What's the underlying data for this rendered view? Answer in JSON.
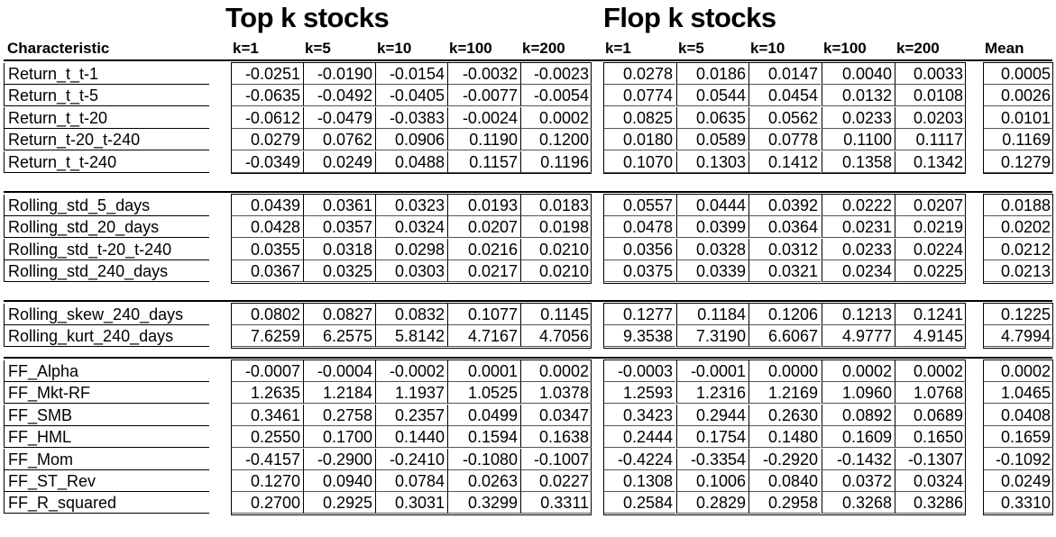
{
  "titles": {
    "top": "Top k stocks",
    "flop": "Flop k stocks"
  },
  "header": {
    "characteristic": "Characteristic",
    "top_cols": [
      "k=1",
      "k=5",
      "k=10",
      "k=100",
      "k=200"
    ],
    "flop_cols": [
      "k=1",
      "k=5",
      "k=10",
      "k=100",
      "k=200"
    ],
    "mean": "Mean"
  },
  "groups": [
    {
      "rows": [
        {
          "label": "Return_t_t-1",
          "top": [
            "-0.0251",
            "-0.0190",
            "-0.0154",
            "-0.0032",
            "-0.0023"
          ],
          "flop": [
            "0.0278",
            "0.0186",
            "0.0147",
            "0.0040",
            "0.0033"
          ],
          "mean": "0.0005"
        },
        {
          "label": "Return_t_t-5",
          "top": [
            "-0.0635",
            "-0.0492",
            "-0.0405",
            "-0.0077",
            "-0.0054"
          ],
          "flop": [
            "0.0774",
            "0.0544",
            "0.0454",
            "0.0132",
            "0.0108"
          ],
          "mean": "0.0026"
        },
        {
          "label": "Return_t_t-20",
          "top": [
            "-0.0612",
            "-0.0479",
            "-0.0383",
            "-0.0024",
            "0.0002"
          ],
          "flop": [
            "0.0825",
            "0.0635",
            "0.0562",
            "0.0233",
            "0.0203"
          ],
          "mean": "0.0101"
        },
        {
          "label": "Return_t-20_t-240",
          "top": [
            "0.0279",
            "0.0762",
            "0.0906",
            "0.1190",
            "0.1200"
          ],
          "flop": [
            "0.0180",
            "0.0589",
            "0.0778",
            "0.1100",
            "0.1117"
          ],
          "mean": "0.1169"
        },
        {
          "label": "Return_t_t-240",
          "top": [
            "-0.0349",
            "0.0249",
            "0.0488",
            "0.1157",
            "0.1196"
          ],
          "flop": [
            "0.1070",
            "0.1303",
            "0.1412",
            "0.1358",
            "0.1342"
          ],
          "mean": "0.1279"
        }
      ]
    },
    {
      "rows": [
        {
          "label": "Rolling_std_5_days",
          "top": [
            "0.0439",
            "0.0361",
            "0.0323",
            "0.0193",
            "0.0183"
          ],
          "flop": [
            "0.0557",
            "0.0444",
            "0.0392",
            "0.0222",
            "0.0207"
          ],
          "mean": "0.0188"
        },
        {
          "label": "Rolling_std_20_days",
          "top": [
            "0.0428",
            "0.0357",
            "0.0324",
            "0.0207",
            "0.0198"
          ],
          "flop": [
            "0.0478",
            "0.0399",
            "0.0364",
            "0.0231",
            "0.0219"
          ],
          "mean": "0.0202"
        },
        {
          "label": "Rolling_std_t-20_t-240",
          "top": [
            "0.0355",
            "0.0318",
            "0.0298",
            "0.0216",
            "0.0210"
          ],
          "flop": [
            "0.0356",
            "0.0328",
            "0.0312",
            "0.0233",
            "0.0224"
          ],
          "mean": "0.0212"
        },
        {
          "label": "Rolling_std_240_days",
          "top": [
            "0.0367",
            "0.0325",
            "0.0303",
            "0.0217",
            "0.0210"
          ],
          "flop": [
            "0.0375",
            "0.0339",
            "0.0321",
            "0.0234",
            "0.0225"
          ],
          "mean": "0.0213"
        }
      ]
    },
    {
      "rows": [
        {
          "label": "Rolling_skew_240_days",
          "top": [
            "0.0802",
            "0.0827",
            "0.0832",
            "0.1077",
            "0.1145"
          ],
          "flop": [
            "0.1277",
            "0.1184",
            "0.1206",
            "0.1213",
            "0.1241"
          ],
          "mean": "0.1225"
        },
        {
          "label": "Rolling_kurt_240_days",
          "top": [
            "7.6259",
            "6.2575",
            "5.8142",
            "4.7167",
            "4.7056"
          ],
          "flop": [
            "9.3538",
            "7.3190",
            "6.6067",
            "4.9777",
            "4.9145"
          ],
          "mean": "4.7994"
        }
      ]
    },
    {
      "rows": [
        {
          "label": "FF_Alpha",
          "top": [
            "-0.0007",
            "-0.0004",
            "-0.0002",
            "0.0001",
            "0.0002"
          ],
          "flop": [
            "-0.0003",
            "-0.0001",
            "0.0000",
            "0.0002",
            "0.0002"
          ],
          "mean": "0.0002"
        },
        {
          "label": "FF_Mkt-RF",
          "top": [
            "1.2635",
            "1.2184",
            "1.1937",
            "1.0525",
            "1.0378"
          ],
          "flop": [
            "1.2593",
            "1.2316",
            "1.2169",
            "1.0960",
            "1.0768"
          ],
          "mean": "1.0465"
        },
        {
          "label": "FF_SMB",
          "top": [
            "0.3461",
            "0.2758",
            "0.2357",
            "0.0499",
            "0.0347"
          ],
          "flop": [
            "0.3423",
            "0.2944",
            "0.2630",
            "0.0892",
            "0.0689"
          ],
          "mean": "0.0408"
        },
        {
          "label": "FF_HML",
          "top": [
            "0.2550",
            "0.1700",
            "0.1440",
            "0.1594",
            "0.1638"
          ],
          "flop": [
            "0.2444",
            "0.1754",
            "0.1480",
            "0.1609",
            "0.1650"
          ],
          "mean": "0.1659"
        },
        {
          "label": "FF_Mom",
          "top": [
            "-0.4157",
            "-0.2900",
            "-0.2410",
            "-0.1080",
            "-0.1007"
          ],
          "flop": [
            "-0.4224",
            "-0.3354",
            "-0.2920",
            "-0.1432",
            "-0.1307"
          ],
          "mean": "-0.1092"
        },
        {
          "label": "FF_ST_Rev",
          "top": [
            "0.1270",
            "0.0940",
            "0.0784",
            "0.0263",
            "0.0227"
          ],
          "flop": [
            "0.1308",
            "0.1006",
            "0.0840",
            "0.0372",
            "0.0324"
          ],
          "mean": "0.0249"
        },
        {
          "label": "FF_R_squared",
          "top": [
            "0.2700",
            "0.2925",
            "0.3031",
            "0.3299",
            "0.3311"
          ],
          "flop": [
            "0.2584",
            "0.2829",
            "0.2958",
            "0.3268",
            "0.3286"
          ],
          "mean": "0.3310"
        }
      ]
    }
  ]
}
